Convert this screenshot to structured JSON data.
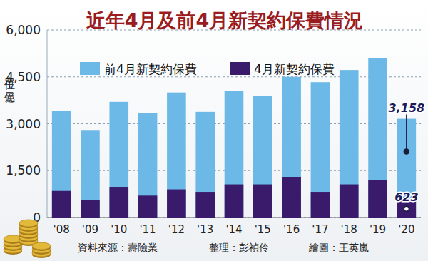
{
  "chart_data": {
    "type": "bar",
    "title": "近年4月及前4月新契約保費情況",
    "y_label": "單位：億元",
    "footer": [
      "資料來源：壽險業",
      "整理：彭禎伶",
      "繪圖：王英嵐"
    ],
    "categories": [
      "'08",
      "'09",
      "'10",
      "'11",
      "'12",
      "'13",
      "'14",
      "'15",
      "'16",
      "'17",
      "'18",
      "'19",
      "'20"
    ],
    "series": [
      {
        "name": "前4月新契約保費",
        "color": "#6cb9e8",
        "values": [
          3400,
          2800,
          3700,
          3350,
          4000,
          3380,
          4050,
          3880,
          4500,
          4330,
          4720,
          5100,
          3158
        ],
        "value_labels": [
          null,
          null,
          null,
          null,
          null,
          null,
          null,
          null,
          null,
          null,
          null,
          null,
          "3,158"
        ]
      },
      {
        "name": "4月新契約保費",
        "color": "#3a1a6b",
        "values": [
          850,
          550,
          980,
          700,
          900,
          820,
          1060,
          1060,
          1300,
          820,
          1060,
          1200,
          623
        ],
        "value_labels": [
          null,
          null,
          null,
          null,
          null,
          null,
          null,
          null,
          null,
          null,
          null,
          null,
          "623"
        ]
      }
    ],
    "stacked": false,
    "data_labels": true,
    "ylim": [
      0,
      6000
    ],
    "yticks": [
      0,
      {
        "value": 1500,
        "label": "1,500"
      },
      {
        "value": 3000,
        "label": "3,000"
      },
      {
        "value": 4500,
        "label": "4,500"
      },
      {
        "value": 6000,
        "label": "6,000"
      }
    ],
    "grid": true,
    "legend": "top"
  }
}
